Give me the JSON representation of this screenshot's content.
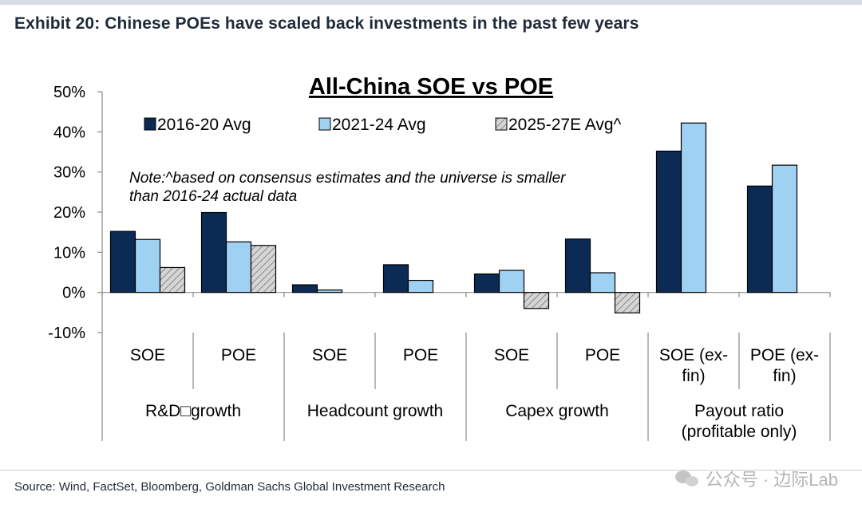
{
  "header": {
    "exhibit_title": "Exhibit 20: Chinese POEs have scaled back investments in the past few years"
  },
  "footer": {
    "source": "Source: Wind, FactSet, Bloomberg, Goldman Sachs Global Investment Research",
    "watermark": "公众号 · 边际Lab"
  },
  "colors": {
    "series_2016_20": "#0b2a54",
    "series_2021_24": "#9fd1f2",
    "series_2025_27": "#c9c9c9",
    "header_text": "#1f2b3a"
  },
  "chart_data": {
    "type": "bar",
    "title": "All-China SOE vs POE",
    "note": "Note:^based on consensus estimates and the universe is smaller than 2016-24 actual data",
    "note_lines": [
      "Note:^based on consensus estimates and the universe is smaller",
      "than 2016-24 actual data"
    ],
    "categories": [
      "SOE",
      "POE",
      "SOE",
      "POE",
      "SOE",
      "POE",
      "SOE (ex-fin)",
      "POE (ex-fin)"
    ],
    "category_lines": [
      [
        "SOE"
      ],
      [
        "POE"
      ],
      [
        "SOE"
      ],
      [
        "POE"
      ],
      [
        "SOE"
      ],
      [
        "POE"
      ],
      [
        "SOE (ex-",
        "fin)"
      ],
      [
        "POE (ex-",
        "fin)"
      ]
    ],
    "groups": [
      {
        "label_lines": [
          "R&D□growth"
        ]
      },
      {
        "label_lines": [
          "Headcount growth"
        ]
      },
      {
        "label_lines": [
          "Capex growth"
        ]
      },
      {
        "label_lines": [
          "Payout ratio",
          "(profitable only)"
        ]
      }
    ],
    "series": [
      {
        "name": "2016-20 Avg",
        "values": [
          15.2,
          19.9,
          1.9,
          6.9,
          4.6,
          13.3,
          35.2,
          26.5
        ]
      },
      {
        "name": "2021-24 Avg",
        "values": [
          13.2,
          12.6,
          0.6,
          3.0,
          5.5,
          4.9,
          42.2,
          31.7
        ]
      },
      {
        "name": "2025-27E Avg^",
        "values": [
          6.2,
          11.7,
          null,
          null,
          -4.0,
          -5.1,
          null,
          null
        ]
      }
    ],
    "ylim": [
      -10,
      50
    ],
    "yticks": [
      "-10%",
      "0%",
      "10%",
      "20%",
      "30%",
      "40%",
      "50%"
    ],
    "ytick_values": [
      -10,
      0,
      10,
      20,
      30,
      40,
      50
    ],
    "legend_position": "top-left",
    "grid": false
  }
}
